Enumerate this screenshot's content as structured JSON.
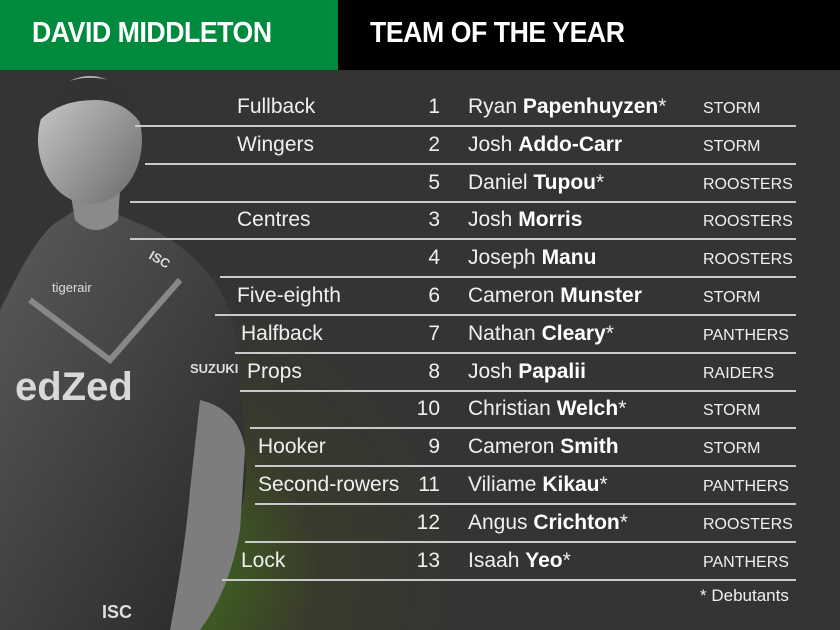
{
  "header": {
    "name": "DAVID MIDDLETON",
    "title": "TEAM OF THE YEAR"
  },
  "colors": {
    "green": "#008a3e",
    "black": "#000000",
    "background": "#343434"
  },
  "photo": {
    "subject": "player in jersey",
    "logos": [
      "tigerair",
      "ISC",
      "edZed",
      "SUZUKI"
    ]
  },
  "rows": [
    {
      "position": "Fullback",
      "number": "1",
      "first": "Ryan",
      "last": "Papenhuyzen",
      "mark": "*",
      "club": "STORM"
    },
    {
      "position": "Wingers",
      "number": "2",
      "first": "Josh",
      "last": "Addo-Carr",
      "mark": "",
      "club": "STORM"
    },
    {
      "position": "",
      "number": "5",
      "first": "Daniel",
      "last": "Tupou",
      "mark": "*",
      "club": "ROOSTERS"
    },
    {
      "position": "Centres",
      "number": "3",
      "first": "Josh",
      "last": "Morris",
      "mark": "",
      "club": "ROOSTERS"
    },
    {
      "position": "",
      "number": "4",
      "first": "Joseph",
      "last": "Manu",
      "mark": "",
      "club": "ROOSTERS"
    },
    {
      "position": "Five-eighth",
      "number": "6",
      "first": "Cameron",
      "last": "Munster",
      "mark": "",
      "club": "STORM"
    },
    {
      "position": "Halfback",
      "number": "7",
      "first": "Nathan",
      "last": "Cleary",
      "mark": "*",
      "club": "PANTHERS"
    },
    {
      "position": "Props",
      "number": "8",
      "first": "Josh",
      "last": "Papalii",
      "mark": "",
      "club": "RAIDERS"
    },
    {
      "position": "",
      "number": "10",
      "first": "Christian",
      "last": "Welch",
      "mark": "*",
      "club": "STORM"
    },
    {
      "position": "Hooker",
      "number": "9",
      "first": "Cameron",
      "last": "Smith",
      "mark": "",
      "club": "STORM"
    },
    {
      "position": "Second-rowers",
      "number": "11",
      "first": "Viliame",
      "last": "Kikau",
      "mark": "*",
      "club": "PANTHERS"
    },
    {
      "position": "",
      "number": "12",
      "first": "Angus",
      "last": "Crichton",
      "mark": "*",
      "club": "ROOSTERS"
    },
    {
      "position": "Lock",
      "number": "13",
      "first": "Isaah",
      "last": "Yeo",
      "mark": "*",
      "club": "PANTHERS"
    }
  ],
  "footnote": "* Debutants"
}
